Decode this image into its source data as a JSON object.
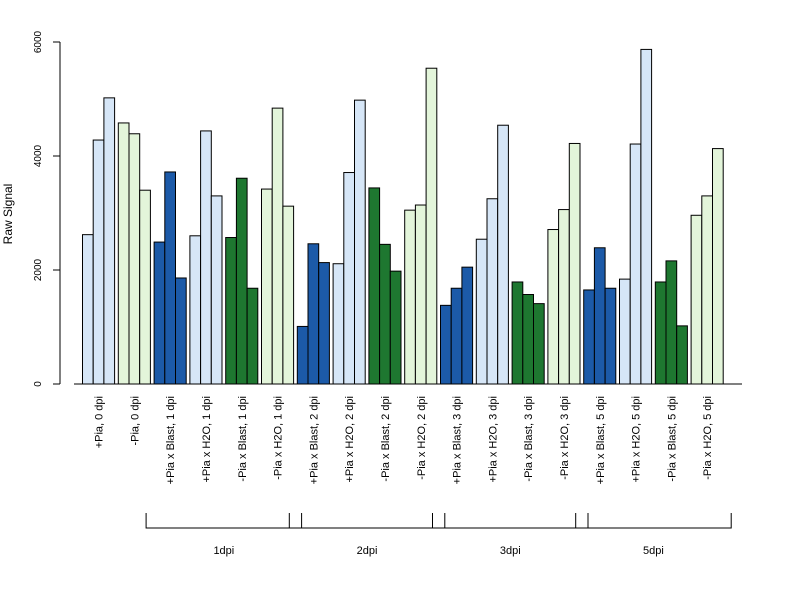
{
  "chart_data": {
    "type": "bar",
    "ylabel": "Raw Signal",
    "ylim": [
      0,
      6000
    ],
    "yticks": [
      0,
      2000,
      4000,
      6000
    ],
    "categories": [
      "+Pia, 0 dpi",
      "-Pia, 0 dpi",
      "+Pia x Blast, 1 dpi",
      "+Pia x H2O, 1 dpi",
      "-Pia x Blast, 1 dpi",
      "-Pia x H2O, 1 dpi",
      "+Pia x Blast, 2 dpi",
      "+Pia x H2O, 2 dpi",
      "-Pia x Blast, 2 dpi",
      "-Pia x H2O, 2 dpi",
      "+Pia x Blast, 3 dpi",
      "+Pia x H2O, 3 dpi",
      "-Pia x Blast, 3 dpi",
      "-Pia x H2O, 3 dpi",
      "+Pia x Blast, 5 dpi",
      "+Pia x H2O, 5 dpi",
      "-Pia x Blast, 5 dpi",
      "-Pia x H2O, 5 dpi"
    ],
    "values": [
      [
        2620,
        4280,
        5020
      ],
      [
        4580,
        4390,
        3400
      ],
      [
        2490,
        3720,
        1860
      ],
      [
        2600,
        4440,
        3300
      ],
      [
        2570,
        3610,
        1680
      ],
      [
        3420,
        4840,
        3120
      ],
      [
        1010,
        2460,
        2130
      ],
      [
        2110,
        3710,
        4980
      ],
      [
        3440,
        2450,
        1980
      ],
      [
        3050,
        3140,
        5540
      ],
      [
        1380,
        1680,
        2050
      ],
      [
        2540,
        3250,
        4540
      ],
      [
        1790,
        1570,
        1410
      ],
      [
        2710,
        3060,
        4220
      ],
      [
        1650,
        2390,
        1680
      ],
      [
        1840,
        4210,
        5870
      ],
      [
        1790,
        2160,
        1020
      ],
      [
        2960,
        3300,
        4130
      ]
    ],
    "category_colors": [
      "#d6e6f7",
      "#e3f5da",
      "#1c5aa8",
      "#d6e6f7",
      "#1e7730",
      "#e3f5da",
      "#1c5aa8",
      "#d6e6f7",
      "#1e7730",
      "#e3f5da",
      "#1c5aa8",
      "#d6e6f7",
      "#1e7730",
      "#e3f5da",
      "#1c5aa8",
      "#d6e6f7",
      "#1e7730",
      "#e3f5da"
    ],
    "groups": [
      {
        "label": "1dpi",
        "from": 2,
        "to": 5
      },
      {
        "label": "2dpi",
        "from": 6,
        "to": 9
      },
      {
        "label": "3dpi",
        "from": 10,
        "to": 13
      },
      {
        "label": "5dpi",
        "from": 14,
        "to": 17
      }
    ]
  }
}
